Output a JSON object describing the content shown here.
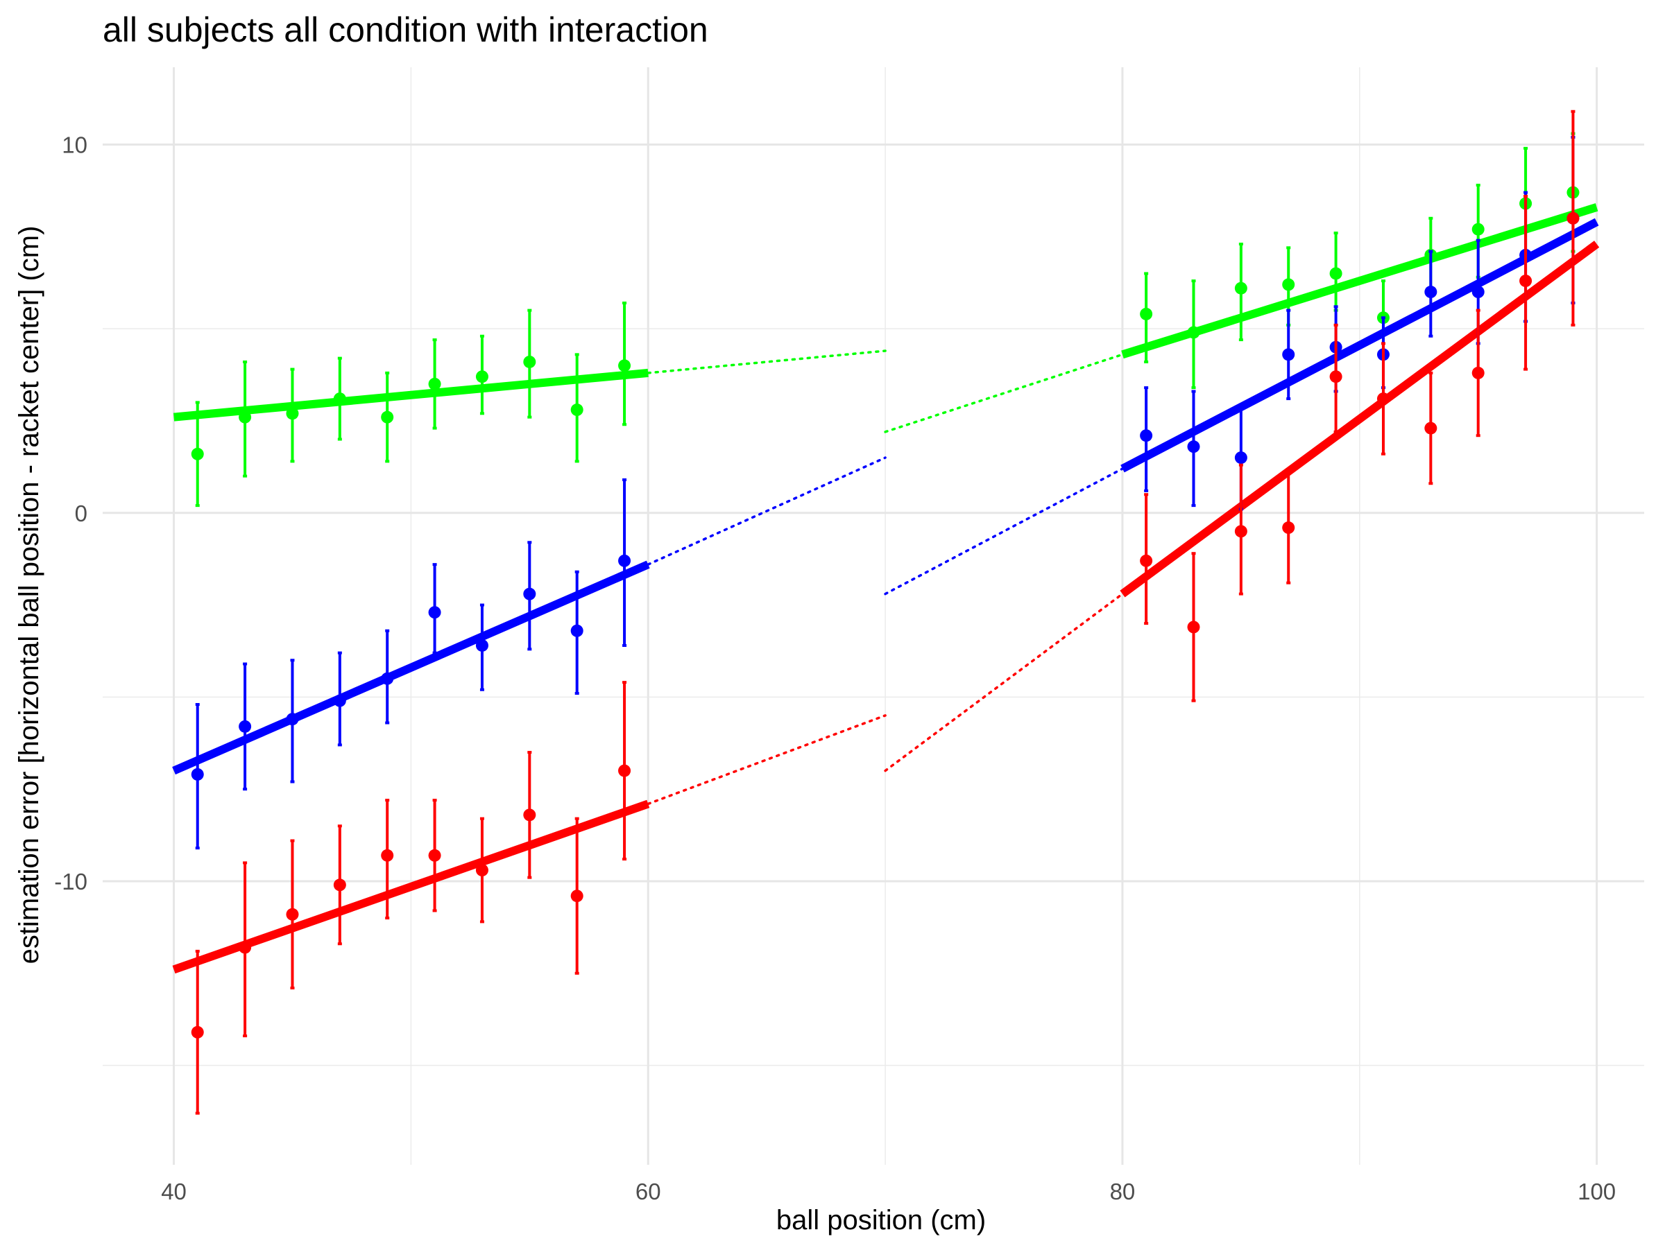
{
  "chart_data": {
    "type": "scatter",
    "title": "all subjects all condition with interaction",
    "xlabel": "ball position (cm)",
    "ylabel": "estimation error [horizontal ball position - racket center] (cm)",
    "xlim": [
      37,
      102
    ],
    "ylim": [
      -17.7,
      12.1
    ],
    "x_ticks": [
      40,
      60,
      80,
      100
    ],
    "x_tick_labels": [
      "40",
      "60",
      "80",
      "100"
    ],
    "y_ticks": [
      -10,
      0,
      10
    ],
    "y_tick_labels": [
      "-10",
      "0",
      "10"
    ],
    "grid": true,
    "legend": "none",
    "series": [
      {
        "color": "#00FF00",
        "points": [
          {
            "x": 41,
            "y": 1.6,
            "ymin": 0.2,
            "ymax": 3.0
          },
          {
            "x": 43,
            "y": 2.6,
            "ymin": 1.0,
            "ymax": 4.1
          },
          {
            "x": 45,
            "y": 2.7,
            "ymin": 1.4,
            "ymax": 3.9
          },
          {
            "x": 47,
            "y": 3.1,
            "ymin": 2.0,
            "ymax": 4.2
          },
          {
            "x": 49,
            "y": 2.6,
            "ymin": 1.4,
            "ymax": 3.8
          },
          {
            "x": 51,
            "y": 3.5,
            "ymin": 2.3,
            "ymax": 4.7
          },
          {
            "x": 53,
            "y": 3.7,
            "ymin": 2.7,
            "ymax": 4.8
          },
          {
            "x": 55,
            "y": 4.1,
            "ymin": 2.6,
            "ymax": 5.5
          },
          {
            "x": 57,
            "y": 2.8,
            "ymin": 1.4,
            "ymax": 4.3
          },
          {
            "x": 59,
            "y": 4.0,
            "ymin": 2.4,
            "ymax": 5.7
          },
          {
            "x": 81,
            "y": 5.4,
            "ymin": 4.1,
            "ymax": 6.5
          },
          {
            "x": 83,
            "y": 4.9,
            "ymin": 3.4,
            "ymax": 6.3
          },
          {
            "x": 85,
            "y": 6.1,
            "ymin": 4.7,
            "ymax": 7.3
          },
          {
            "x": 87,
            "y": 6.2,
            "ymin": 5.1,
            "ymax": 7.2
          },
          {
            "x": 89,
            "y": 6.5,
            "ymin": 5.5,
            "ymax": 7.6
          },
          {
            "x": 91,
            "y": 5.3,
            "ymin": 4.3,
            "ymax": 6.3
          },
          {
            "x": 93,
            "y": 7.0,
            "ymin": 6.0,
            "ymax": 8.0
          },
          {
            "x": 95,
            "y": 7.7,
            "ymin": 6.4,
            "ymax": 8.9
          },
          {
            "x": 97,
            "y": 8.4,
            "ymin": 6.9,
            "ymax": 9.9
          },
          {
            "x": 99,
            "y": 8.7,
            "ymin": 7.1,
            "ymax": 10.3
          }
        ],
        "fit_segments": [
          {
            "x": [
              40,
              60
            ],
            "y": [
              2.6,
              3.8
            ]
          },
          {
            "x": [
              80,
              100
            ],
            "y": [
              4.3,
              8.3
            ]
          }
        ],
        "dotted_segments": [
          {
            "x": [
              60,
              70
            ],
            "y": [
              3.8,
              4.4
            ]
          },
          {
            "x": [
              70,
              80
            ],
            "y": [
              2.2,
              4.3
            ]
          }
        ]
      },
      {
        "color": "#0000FF",
        "points": [
          {
            "x": 41,
            "y": -7.1,
            "ymin": -9.1,
            "ymax": -5.2
          },
          {
            "x": 43,
            "y": -5.8,
            "ymin": -7.5,
            "ymax": -4.1
          },
          {
            "x": 45,
            "y": -5.6,
            "ymin": -7.3,
            "ymax": -4.0
          },
          {
            "x": 47,
            "y": -5.1,
            "ymin": -6.3,
            "ymax": -3.8
          },
          {
            "x": 49,
            "y": -4.5,
            "ymin": -5.7,
            "ymax": -3.2
          },
          {
            "x": 51,
            "y": -2.7,
            "ymin": -3.8,
            "ymax": -1.4
          },
          {
            "x": 53,
            "y": -3.6,
            "ymin": -4.8,
            "ymax": -2.5
          },
          {
            "x": 55,
            "y": -2.2,
            "ymin": -3.7,
            "ymax": -0.8
          },
          {
            "x": 57,
            "y": -3.2,
            "ymin": -4.9,
            "ymax": -1.6
          },
          {
            "x": 59,
            "y": -1.3,
            "ymin": -3.6,
            "ymax": 0.9
          },
          {
            "x": 81,
            "y": 2.1,
            "ymin": 0.6,
            "ymax": 3.4
          },
          {
            "x": 83,
            "y": 1.8,
            "ymin": 0.2,
            "ymax": 3.3
          },
          {
            "x": 85,
            "y": 1.5,
            "ymin": 0.1,
            "ymax": 2.9
          },
          {
            "x": 87,
            "y": 4.3,
            "ymin": 3.1,
            "ymax": 5.5
          },
          {
            "x": 89,
            "y": 4.5,
            "ymin": 3.3,
            "ymax": 5.6
          },
          {
            "x": 91,
            "y": 4.3,
            "ymin": 3.4,
            "ymax": 5.3
          },
          {
            "x": 93,
            "y": 6.0,
            "ymin": 4.8,
            "ymax": 7.1
          },
          {
            "x": 95,
            "y": 6.0,
            "ymin": 4.6,
            "ymax": 7.4
          },
          {
            "x": 97,
            "y": 7.0,
            "ymin": 5.2,
            "ymax": 8.7
          },
          {
            "x": 99,
            "y": 8.0,
            "ymin": 5.7,
            "ymax": 10.2
          }
        ],
        "fit_segments": [
          {
            "x": [
              40,
              60
            ],
            "y": [
              -7.0,
              -1.4
            ]
          },
          {
            "x": [
              80,
              100
            ],
            "y": [
              1.2,
              7.9
            ]
          }
        ],
        "dotted_segments": [
          {
            "x": [
              60,
              70
            ],
            "y": [
              -1.4,
              1.5
            ]
          },
          {
            "x": [
              70,
              80
            ],
            "y": [
              -2.2,
              1.2
            ]
          }
        ]
      },
      {
        "color": "#FF0000",
        "points": [
          {
            "x": 41,
            "y": -14.1,
            "ymin": -16.3,
            "ymax": -11.9
          },
          {
            "x": 43,
            "y": -11.8,
            "ymin": -14.2,
            "ymax": -9.5
          },
          {
            "x": 45,
            "y": -10.9,
            "ymin": -12.9,
            "ymax": -8.9
          },
          {
            "x": 47,
            "y": -10.1,
            "ymin": -11.7,
            "ymax": -8.5
          },
          {
            "x": 49,
            "y": -9.3,
            "ymin": -11.0,
            "ymax": -7.8
          },
          {
            "x": 51,
            "y": -9.3,
            "ymin": -10.8,
            "ymax": -7.8
          },
          {
            "x": 53,
            "y": -9.7,
            "ymin": -11.1,
            "ymax": -8.3
          },
          {
            "x": 55,
            "y": -8.2,
            "ymin": -9.9,
            "ymax": -6.5
          },
          {
            "x": 57,
            "y": -10.4,
            "ymin": -12.5,
            "ymax": -8.3
          },
          {
            "x": 59,
            "y": -7.0,
            "ymin": -9.4,
            "ymax": -4.6
          },
          {
            "x": 81,
            "y": -1.3,
            "ymin": -3.0,
            "ymax": 0.5
          },
          {
            "x": 83,
            "y": -3.1,
            "ymin": -5.1,
            "ymax": -1.1
          },
          {
            "x": 85,
            "y": -0.5,
            "ymin": -2.2,
            "ymax": 1.3
          },
          {
            "x": 87,
            "y": -0.4,
            "ymin": -1.9,
            "ymax": 1.1
          },
          {
            "x": 89,
            "y": 3.7,
            "ymin": 2.2,
            "ymax": 5.1
          },
          {
            "x": 91,
            "y": 3.1,
            "ymin": 1.6,
            "ymax": 4.6
          },
          {
            "x": 93,
            "y": 2.3,
            "ymin": 0.8,
            "ymax": 3.8
          },
          {
            "x": 95,
            "y": 3.8,
            "ymin": 2.1,
            "ymax": 5.5
          },
          {
            "x": 97,
            "y": 6.3,
            "ymin": 3.9,
            "ymax": 8.6
          },
          {
            "x": 99,
            "y": 8.0,
            "ymin": 5.1,
            "ymax": 10.9
          }
        ],
        "fit_segments": [
          {
            "x": [
              40,
              60
            ],
            "y": [
              -12.4,
              -7.9
            ]
          },
          {
            "x": [
              80,
              100
            ],
            "y": [
              -2.2,
              7.3
            ]
          }
        ],
        "dotted_segments": [
          {
            "x": [
              60,
              70
            ],
            "y": [
              -7.9,
              -5.5
            ]
          },
          {
            "x": [
              70,
              80
            ],
            "y": [
              -7.0,
              -2.2
            ]
          }
        ]
      }
    ]
  }
}
